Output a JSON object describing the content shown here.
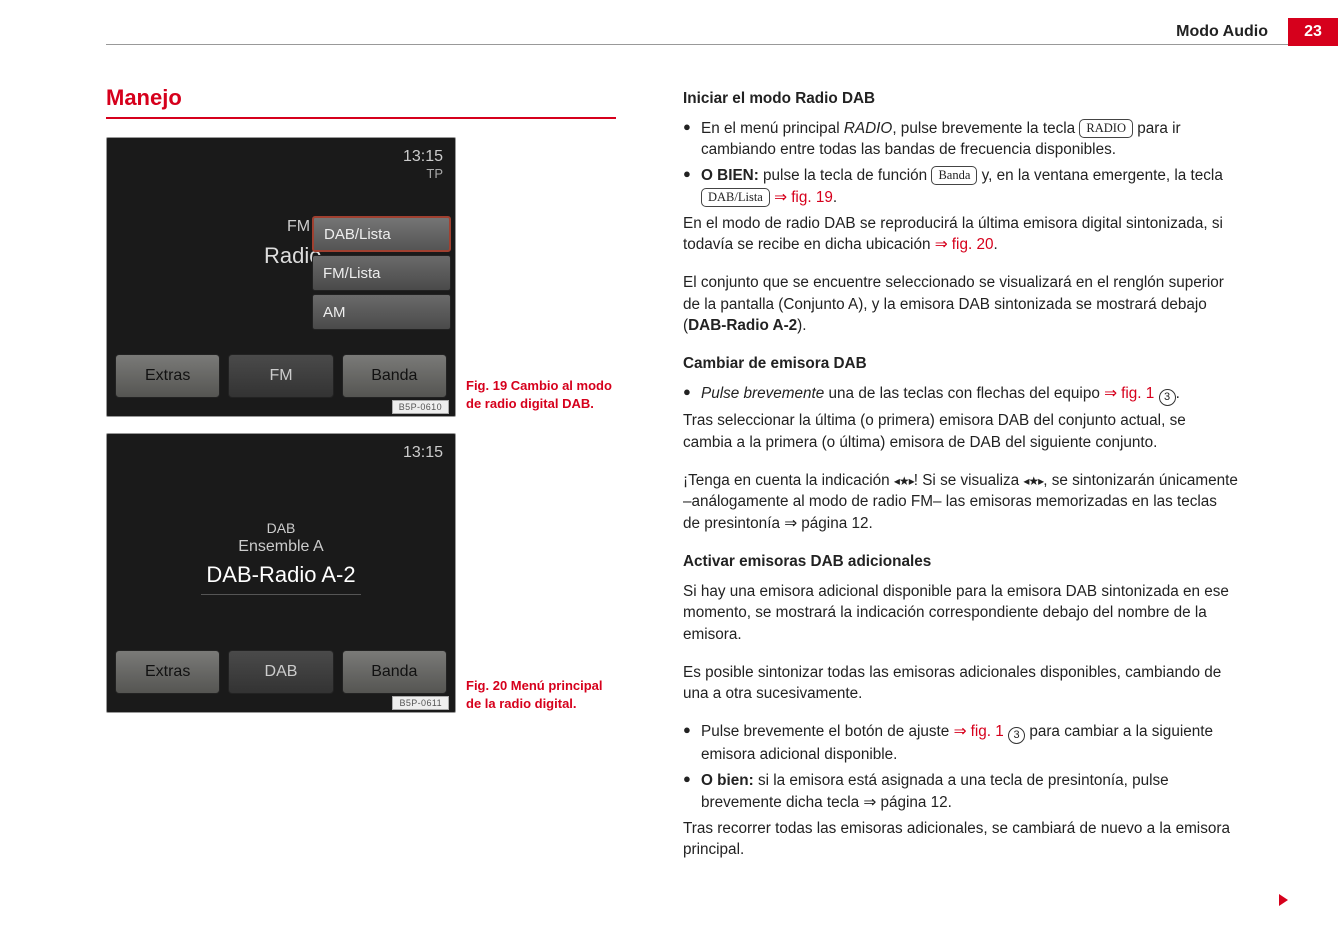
{
  "header": {
    "title": "Modo Audio",
    "page": "23"
  },
  "section_title": "Manejo",
  "colors": {
    "accent": "#d6001c",
    "text": "#222222",
    "screenshot_bg": "#2a2a2a"
  },
  "fig19": {
    "time": "13:15",
    "tp": "TP",
    "fm_label": "FM",
    "radio_label": "Radio",
    "popup": [
      "DAB/Lista",
      "FM/Lista",
      "AM"
    ],
    "bottom": [
      "Extras",
      "FM",
      "Banda"
    ],
    "code": "B5P-0610",
    "caption": "Fig. 19  Cambio al modo de radio digital DAB."
  },
  "fig20": {
    "time": "13:15",
    "dab_small": "DAB",
    "ensemble": "Ensemble A",
    "station": "DAB-Radio A-2",
    "bottom": [
      "Extras",
      "DAB",
      "Banda"
    ],
    "code": "B5P-0611",
    "caption": "Fig. 20  Menú principal de la radio digital."
  },
  "text": {
    "h1": "Iniciar el modo Radio DAB",
    "b1a": "En el menú principal ",
    "b1_italic": "RADIO",
    "b1b": ", pulse brevemente la tecla ",
    "key_radio": "RADIO",
    "b1c": " para ir cambiando entre todas las bandas de frecuencia disponibles.",
    "b2_bold": "O BIEN:",
    "b2a": " pulse la tecla de función ",
    "key_banda": "Banda",
    "b2b": " y, en la ventana emergente, la tecla ",
    "key_dablista": "DAB/Lista",
    "b2c": " ⇒ ",
    "ref_f19": "fig. 19",
    "b2d": ".",
    "p1a": "En el modo de radio DAB se reproducirá la última emisora digital sintoniza­da, si todavía se recibe en dicha ubicación ",
    "p1_arrow": "⇒ ",
    "ref_f20": "fig. 20",
    "p1b": ".",
    "p2a": "El conjunto que se encuentre seleccionado se visualizará en el renglón su­perior de la pantalla (Conjunto A), y la emisora DAB sintonizada se mostrará debajo (",
    "p2_bold": "DAB-Radio A-2",
    "p2b": ").",
    "h2": "Cambiar de emisora DAB",
    "b3_italic": "Pulse brevemente",
    "b3a": " una de las teclas con flechas del equipo ",
    "b3_arrow": "⇒ ",
    "ref_f1a": "fig. 1",
    "circ3": "3",
    "p3": "Tras seleccionar la última (o primera) emisora DAB del conjunto actual, se cambia a la primera (o última) emisora de DAB del siguiente conjunto.",
    "p4a": "¡Tenga en cuenta la indicación ",
    "star": "◂★▸",
    "p4b": "! Si se visualiza ",
    "p4c": ", se sintonizarán úni­camente –análogamente al modo de radio FM– las emisoras memorizadas en las teclas de presintonía ⇒ página 12.",
    "h3": "Activar emisoras DAB adicionales",
    "p5": "Si hay una emisora adicional disponible para la emisora DAB sintonizada en ese momento, se mostrará la indicación correspondiente debajo del nom­bre de la emisora.",
    "p6": "Es posible sintonizar todas las emisoras adicionales disponibles, cambian­do de una a otra sucesivamente.",
    "b4a": "Pulse brevemente el botón de ajuste ",
    "b4_arrow": "⇒ ",
    "ref_f1b": "fig. 1",
    "b4b": " para cambiar a la si­guiente emisora adicional disponible.",
    "b5_bold": "O bien:",
    "b5a": " si la emisora está asignada a una tecla de presintonía, pulse brevemente dicha tecla ⇒ página 12.",
    "p7": "Tras recorrer todas las emisoras adicionales, se cambiará de nuevo a la emi­sora principal."
  }
}
